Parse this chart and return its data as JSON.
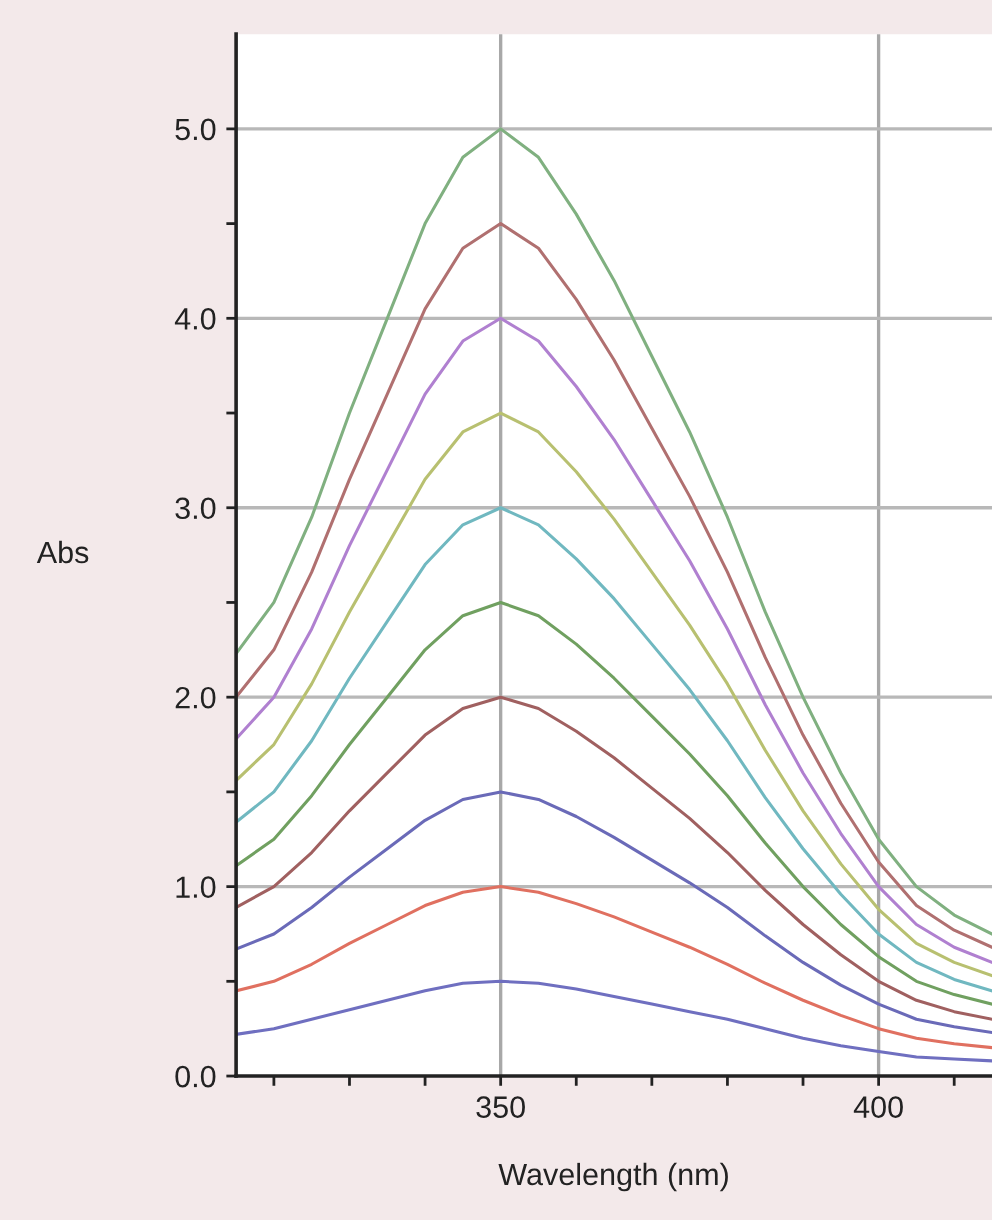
{
  "chart_data": {
    "type": "line",
    "xlabel": "Wavelength (nm)",
    "ylabel": "Abs",
    "x": [
      315,
      320,
      325,
      330,
      335,
      340,
      345,
      350,
      355,
      360,
      365,
      370,
      375,
      380,
      385,
      390,
      395,
      400,
      405,
      410,
      415
    ],
    "series": [
      {
        "color": "#6f6fc0",
        "values": [
          0.22,
          0.25,
          0.3,
          0.35,
          0.4,
          0.45,
          0.49,
          0.5,
          0.49,
          0.46,
          0.42,
          0.38,
          0.34,
          0.3,
          0.25,
          0.2,
          0.16,
          0.13,
          0.1,
          0.09,
          0.08
        ]
      },
      {
        "color": "#e07060",
        "values": [
          0.45,
          0.5,
          0.59,
          0.7,
          0.8,
          0.9,
          0.97,
          1.0,
          0.97,
          0.91,
          0.84,
          0.76,
          0.68,
          0.59,
          0.49,
          0.4,
          0.32,
          0.25,
          0.2,
          0.17,
          0.15
        ]
      },
      {
        "color": "#6a6ab8",
        "values": [
          0.67,
          0.75,
          0.89,
          1.05,
          1.2,
          1.35,
          1.46,
          1.5,
          1.46,
          1.37,
          1.26,
          1.14,
          1.02,
          0.89,
          0.74,
          0.6,
          0.48,
          0.38,
          0.3,
          0.26,
          0.23
        ]
      },
      {
        "color": "#a06060",
        "values": [
          0.89,
          1.0,
          1.18,
          1.4,
          1.6,
          1.8,
          1.94,
          2.0,
          1.94,
          1.82,
          1.68,
          1.52,
          1.36,
          1.18,
          0.98,
          0.8,
          0.64,
          0.5,
          0.4,
          0.34,
          0.3
        ]
      },
      {
        "color": "#70a060",
        "values": [
          1.11,
          1.25,
          1.48,
          1.75,
          2.0,
          2.25,
          2.43,
          2.5,
          2.43,
          2.28,
          2.1,
          1.9,
          1.7,
          1.48,
          1.23,
          1.0,
          0.8,
          0.63,
          0.5,
          0.43,
          0.38
        ]
      },
      {
        "color": "#70b8c0",
        "values": [
          1.34,
          1.5,
          1.77,
          2.1,
          2.4,
          2.7,
          2.91,
          3.0,
          2.91,
          2.73,
          2.52,
          2.28,
          2.04,
          1.77,
          1.47,
          1.2,
          0.96,
          0.75,
          0.6,
          0.51,
          0.45
        ]
      },
      {
        "color": "#b8c070",
        "values": [
          1.56,
          1.75,
          2.07,
          2.45,
          2.8,
          3.15,
          3.4,
          3.5,
          3.4,
          3.19,
          2.94,
          2.66,
          2.38,
          2.07,
          1.72,
          1.4,
          1.12,
          0.88,
          0.7,
          0.6,
          0.53
        ]
      },
      {
        "color": "#b080d0",
        "values": [
          1.78,
          2.0,
          2.36,
          2.8,
          3.2,
          3.6,
          3.88,
          4.0,
          3.88,
          3.64,
          3.36,
          3.04,
          2.72,
          2.36,
          1.96,
          1.6,
          1.28,
          1.0,
          0.8,
          0.68,
          0.6
        ]
      },
      {
        "color": "#b07070",
        "values": [
          2.0,
          2.25,
          2.66,
          3.15,
          3.6,
          4.05,
          4.37,
          4.5,
          4.37,
          4.1,
          3.78,
          3.42,
          3.06,
          2.66,
          2.21,
          1.8,
          1.44,
          1.13,
          0.9,
          0.77,
          0.68
        ]
      },
      {
        "color": "#80b080",
        "values": [
          2.23,
          2.5,
          2.95,
          3.5,
          4.0,
          4.5,
          4.85,
          5.0,
          4.85,
          4.55,
          4.2,
          3.8,
          3.4,
          2.95,
          2.45,
          2.0,
          1.6,
          1.25,
          1.0,
          0.85,
          0.75
        ]
      }
    ],
    "xlim": [
      315,
      415
    ],
    "ylim": [
      0,
      5.5
    ],
    "xticks": [
      {
        "value": 320,
        "label": null
      },
      {
        "value": 330,
        "label": null
      },
      {
        "value": 340,
        "label": null
      },
      350,
      {
        "value": 360,
        "label": null
      },
      {
        "value": 370,
        "label": null
      },
      {
        "value": 380,
        "label": null
      },
      {
        "value": 390,
        "label": null
      },
      400,
      {
        "value": 410,
        "label": null
      }
    ],
    "yticks": [
      {
        "value": 0,
        "label": "0.0"
      },
      {
        "value": 0.5,
        "label": null
      },
      {
        "value": 1,
        "label": "1.0"
      },
      {
        "value": 1.5,
        "label": null
      },
      {
        "value": 2,
        "label": "2.0"
      },
      {
        "value": 2.5,
        "label": null
      },
      {
        "value": 3,
        "label": "3.0"
      },
      {
        "value": 3.5,
        "label": null
      },
      {
        "value": 4,
        "label": "4.0"
      },
      {
        "value": 4.5,
        "label": null
      },
      {
        "value": 5,
        "label": "5.0"
      }
    ],
    "grid": true,
    "marker": "none",
    "line_style": "solid"
  }
}
